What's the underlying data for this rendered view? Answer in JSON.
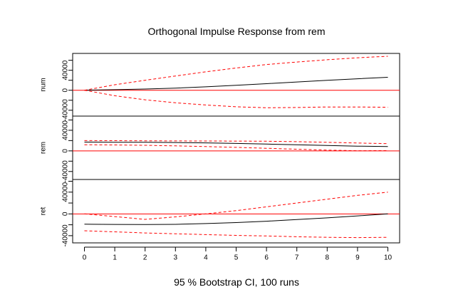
{
  "chart_data": {
    "type": "line",
    "title": "Orthogonal Impulse Response from rem",
    "footer": "95 % Bootstrap CI,  100 runs",
    "x": [
      0,
      1,
      2,
      3,
      4,
      5,
      6,
      7,
      8,
      9,
      10
    ],
    "xlim": [
      0,
      10
    ],
    "x_ticks": [
      "0",
      "1",
      "2",
      "3",
      "4",
      "5",
      "6",
      "7",
      "8",
      "9",
      "10"
    ],
    "grid": false,
    "legend": "none",
    "colors": {
      "response": "#000000",
      "ci": "#ff0000",
      "zero_line": "#ff0000"
    },
    "panels": [
      {
        "name": "num",
        "ylim": [
          -46000,
          68000
        ],
        "y_ticks": [
          {
            "value": -40000,
            "label": "-40000"
          },
          {
            "value": -20000,
            "label": ""
          },
          {
            "value": 0,
            "label": "0"
          },
          {
            "value": 20000,
            "label": ""
          },
          {
            "value": 40000,
            "label": "40000"
          },
          {
            "value": 60000,
            "label": ""
          }
        ],
        "series": [
          {
            "role": "response",
            "values": [
              0,
              1200,
              2500,
              4300,
              6800,
              9800,
              13200,
              16500,
              19800,
              23000,
              26000
            ]
          },
          {
            "role": "ci_upper",
            "values": [
              0,
              11000,
              20000,
              28500,
              37000,
              44500,
              51500,
              56500,
              61000,
              65000,
              68000
            ]
          },
          {
            "role": "ci_lower",
            "values": [
              0,
              -11000,
              -19000,
              -25000,
              -29500,
              -33000,
              -35000,
              -34500,
              -33500,
              -33500,
              -34000
            ]
          }
        ]
      },
      {
        "name": "rem",
        "ylim": [
          -50000,
          62000
        ],
        "y_ticks": [
          {
            "value": -40000,
            "label": "-40000"
          },
          {
            "value": -20000,
            "label": ""
          },
          {
            "value": 0,
            "label": "0"
          },
          {
            "value": 20000,
            "label": ""
          },
          {
            "value": 40000,
            "label": "40000"
          },
          {
            "value": 60000,
            "label": ""
          }
        ],
        "series": [
          {
            "role": "response",
            "values": [
              17000,
              16800,
              16600,
              16200,
              15500,
              14500,
              13200,
              11800,
              10500,
              9200,
              8300
            ]
          },
          {
            "role": "ci_upper",
            "values": [
              20000,
              19800,
              19500,
              19300,
              19200,
              19000,
              18700,
              17900,
              16600,
              15200,
              14000
            ]
          },
          {
            "role": "ci_lower",
            "values": [
              12000,
              11500,
              10800,
              9800,
              8400,
              6800,
              5000,
              3200,
              1500,
              300,
              500
            ]
          }
        ]
      },
      {
        "name": "ret",
        "ylim": [
          -48000,
          58000
        ],
        "y_ticks": [
          {
            "value": -40000,
            "label": "-40000"
          },
          {
            "value": -20000,
            "label": ""
          },
          {
            "value": 0,
            "label": "0"
          },
          {
            "value": 20000,
            "label": ""
          },
          {
            "value": 40000,
            "label": "40000"
          },
          {
            "value": 60000,
            "label": ""
          }
        ],
        "series": [
          {
            "role": "response",
            "values": [
              -19000,
              -19300,
              -19500,
              -19200,
              -17800,
              -16000,
              -13500,
              -10500,
              -7300,
              -3700,
              0
            ]
          },
          {
            "role": "ci_upper",
            "values": [
              0,
              -5000,
              -10000,
              -5500,
              0,
              6000,
              13000,
              20000,
              27000,
              34000,
              40000
            ]
          },
          {
            "role": "ci_lower",
            "values": [
              -31000,
              -33000,
              -35000,
              -36500,
              -38000,
              -39500,
              -40500,
              -42000,
              -43000,
              -43500,
              -43000
            ]
          }
        ]
      }
    ]
  }
}
